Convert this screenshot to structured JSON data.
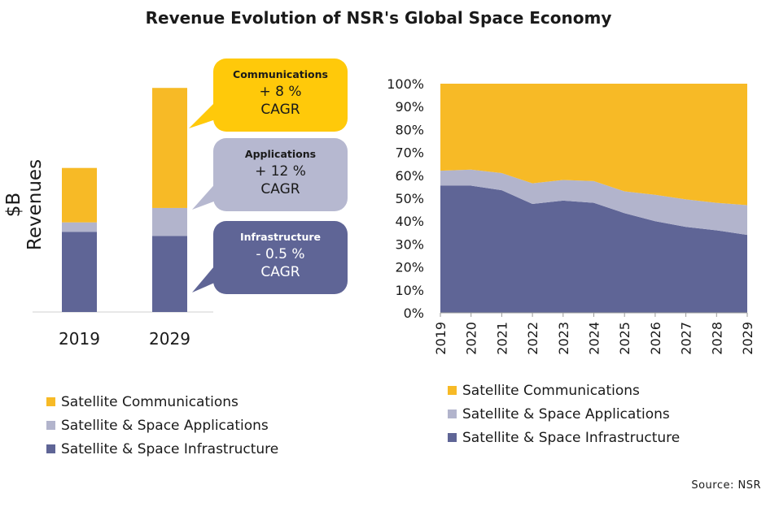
{
  "title": "Revenue Evolution of NSR's Global Space Economy",
  "source": "Source: NSR",
  "colors": {
    "communications": "#F7BA26",
    "applications": "#B2B4CC",
    "infrastructure": "#5F6596"
  },
  "chart_data": [
    {
      "type": "bar",
      "stacked": true,
      "ylabel": "$B Revenues",
      "categories": [
        "2019",
        "2029"
      ],
      "series": [
        {
          "name": "Satellite & Space Infrastructure",
          "values": [
            100,
            95
          ]
        },
        {
          "name": "Satellite & Space Applications",
          "values": [
            12,
            35
          ]
        },
        {
          "name": "Satellite Communications",
          "values": [
            68,
            150
          ]
        }
      ],
      "callouts": [
        {
          "title": "Communications",
          "growth": "+ 8 %",
          "cagr": "CAGR"
        },
        {
          "title": "Applications",
          "growth": "+ 12 %",
          "cagr": "CAGR"
        },
        {
          "title": "Infrastructure",
          "growth": "- 0.5 %",
          "cagr": "CAGR"
        }
      ],
      "legend": [
        "Satellite Communications",
        "Satellite & Space Applications",
        "Satellite & Space Infrastructure"
      ]
    },
    {
      "type": "area",
      "stacked": true,
      "percent": true,
      "x": [
        "2019",
        "2020",
        "2021",
        "2022",
        "2023",
        "2024",
        "2025",
        "2026",
        "2027",
        "2028",
        "2029"
      ],
      "ylim": [
        0,
        100
      ],
      "yticks": [
        "0%",
        "10%",
        "20%",
        "30%",
        "40%",
        "50%",
        "60%",
        "70%",
        "80%",
        "90%",
        "100%"
      ],
      "series": [
        {
          "name": "Satellite & Space Infrastructure",
          "values": [
            55.5,
            55.5,
            53.5,
            47.5,
            49,
            48,
            43.5,
            40,
            37.5,
            36,
            34
          ]
        },
        {
          "name": "Satellite & Space Applications",
          "values": [
            6.5,
            7,
            7.5,
            9,
            9,
            9.5,
            9.5,
            11.5,
            12,
            12,
            13
          ]
        },
        {
          "name": "Satellite Communications",
          "values": [
            38,
            37.5,
            39,
            43.5,
            42,
            42.5,
            47,
            48.5,
            50.5,
            52,
            53
          ]
        }
      ],
      "legend": [
        "Satellite Communications",
        "Satellite & Space Applications",
        "Satellite & Space Infrastructure"
      ]
    }
  ]
}
